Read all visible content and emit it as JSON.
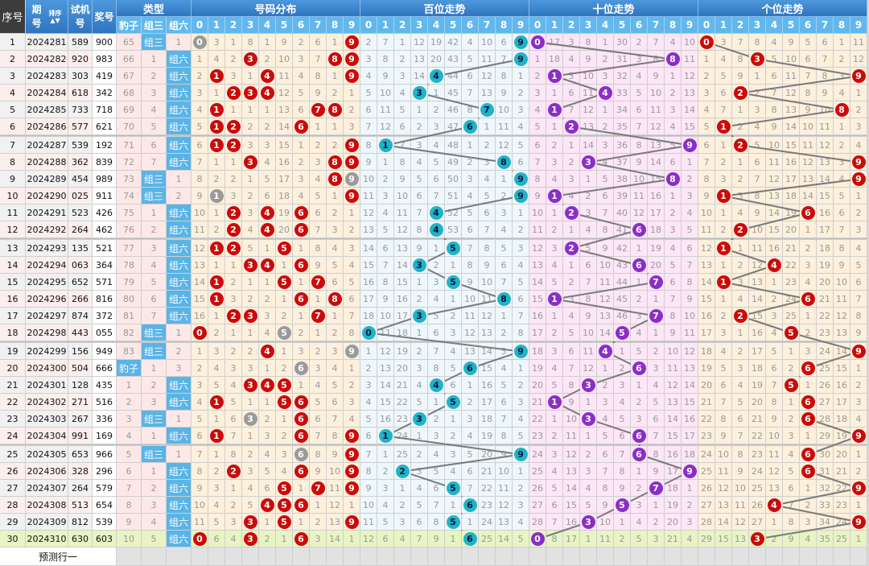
{
  "header": {
    "seq": "序号",
    "period": "期号",
    "sort_label": "排序",
    "trial": "试机号",
    "draw": "奖号",
    "type": "类型",
    "type_cols": [
      "豹子",
      "组三",
      "组六"
    ],
    "sections": [
      "号码分布",
      "百位走势",
      "十位走势",
      "个位走势"
    ],
    "digits": [
      "0",
      "1",
      "2",
      "3",
      "4",
      "5",
      "6",
      "7",
      "8",
      "9"
    ]
  },
  "predict_label": "预测行一",
  "first_row_omissions": {
    "type": [
      65,
      0,
      1
    ],
    "distribution": [
      0,
      3,
      1,
      8,
      1,
      9,
      2,
      6,
      1,
      0
    ],
    "hundreds": [
      2,
      7,
      1,
      12,
      19,
      42,
      4,
      10,
      6,
      0
    ],
    "tens": [
      0,
      17,
      3,
      8,
      1,
      30,
      2,
      7,
      4,
      10
    ],
    "units": [
      0,
      3,
      7,
      8,
      4,
      9,
      5,
      6,
      1,
      11
    ]
  },
  "rows": [
    {
      "seq": "1",
      "period": "2024281",
      "trial": "589",
      "draw": "900"
    },
    {
      "seq": "2",
      "period": "2024282",
      "trial": "920",
      "draw": "983"
    },
    {
      "seq": "3",
      "period": "2024283",
      "trial": "303",
      "draw": "419"
    },
    {
      "seq": "4",
      "period": "2024284",
      "trial": "618",
      "draw": "342"
    },
    {
      "seq": "5",
      "period": "2024285",
      "trial": "733",
      "draw": "718"
    },
    {
      "seq": "6",
      "period": "2024286",
      "trial": "577",
      "draw": "621"
    },
    {
      "seq": "7",
      "period": "2024287",
      "trial": "539",
      "draw": "192"
    },
    {
      "seq": "8",
      "period": "2024288",
      "trial": "362",
      "draw": "839"
    },
    {
      "seq": "9",
      "period": "2024289",
      "trial": "454",
      "draw": "989"
    },
    {
      "seq": "10",
      "period": "2024290",
      "trial": "025",
      "draw": "911"
    },
    {
      "seq": "11",
      "period": "2024291",
      "trial": "523",
      "draw": "426"
    },
    {
      "seq": "12",
      "period": "2024292",
      "trial": "264",
      "draw": "462"
    },
    {
      "seq": "13",
      "period": "2024293",
      "trial": "135",
      "draw": "521"
    },
    {
      "seq": "14",
      "period": "2024294",
      "trial": "063",
      "draw": "364"
    },
    {
      "seq": "15",
      "period": "2024295",
      "trial": "652",
      "draw": "571"
    },
    {
      "seq": "16",
      "period": "2024296",
      "trial": "266",
      "draw": "816"
    },
    {
      "seq": "17",
      "period": "2024297",
      "trial": "874",
      "draw": "372"
    },
    {
      "seq": "18",
      "period": "2024298",
      "trial": "443",
      "draw": "055"
    },
    {
      "seq": "19",
      "period": "2024299",
      "trial": "156",
      "draw": "949"
    },
    {
      "seq": "20",
      "period": "2024300",
      "trial": "504",
      "draw": "666"
    },
    {
      "seq": "21",
      "period": "2024301",
      "trial": "128",
      "draw": "435"
    },
    {
      "seq": "22",
      "period": "2024302",
      "trial": "271",
      "draw": "516"
    },
    {
      "seq": "23",
      "period": "2024303",
      "trial": "267",
      "draw": "336"
    },
    {
      "seq": "24",
      "period": "2024304",
      "trial": "991",
      "draw": "169"
    },
    {
      "seq": "25",
      "period": "2024305",
      "trial": "653",
      "draw": "966"
    },
    {
      "seq": "26",
      "period": "2024306",
      "trial": "328",
      "draw": "296"
    },
    {
      "seq": "27",
      "period": "2024307",
      "trial": "264",
      "draw": "579"
    },
    {
      "seq": "28",
      "period": "2024308",
      "trial": "513",
      "draw": "654"
    },
    {
      "seq": "29",
      "period": "2024309",
      "trial": "812",
      "draw": "539"
    },
    {
      "seq": "30",
      "period": "2024310",
      "trial": "630",
      "draw": "603"
    }
  ],
  "colors": {
    "dist_ball": "#cc0a0a",
    "repeat_ball": "#9a9a9a",
    "hundreds_ball": "#1fb3c8",
    "tens_ball": "#8a2ec8",
    "units_ball": "#cc0a0a",
    "type_hit": "#5ab4e6",
    "last_row": "#e8f4c4"
  },
  "icons": {
    "sort": "sort-arrows-icon"
  }
}
